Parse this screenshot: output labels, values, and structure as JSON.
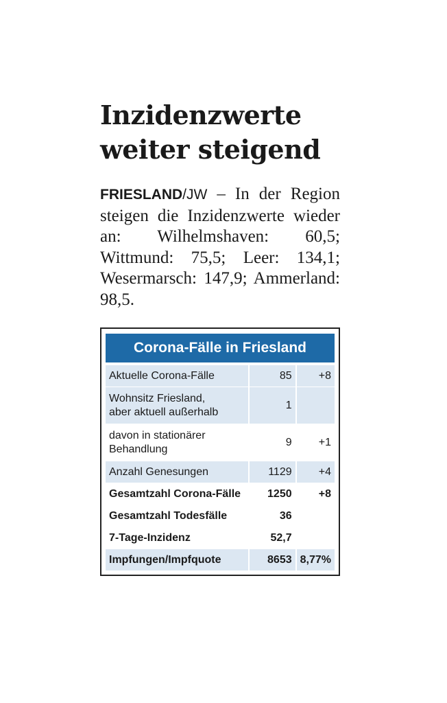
{
  "article": {
    "headline_line1": "Inzidenzwerte",
    "headline_line2": "weiter steigend",
    "dateline": "FRIESLAND",
    "agency": "/JW",
    "body": " – In der Region steigen die Inzidenzwerte wie­der an: Wilhelmshaven: 60,5; Wittmund: 75,5; Leer: 134,1; Wesermarsch: 147,9; Ammer­land: 98,5."
  },
  "box": {
    "title": "Corona-Fälle in Friesland",
    "rows": [
      {
        "label": "Aktuelle Corona-Fälle",
        "value": "85",
        "change": "+8"
      },
      {
        "label_line1": "Wohnsitz Friesland,",
        "label_line2": "aber aktuell außerhalb",
        "value": "1",
        "change": ""
      },
      {
        "label_line1": "davon in stationärer",
        "label_line2": "Behandlung",
        "value": "9",
        "change": "+1"
      },
      {
        "label": "Anzahl Genesungen",
        "value": "1129",
        "change": "+4"
      },
      {
        "label": "Gesamtzahl Corona-Fälle",
        "value": "1250",
        "change": "+8"
      },
      {
        "label": "Gesamtzahl Todesfälle",
        "value": "36",
        "change": ""
      },
      {
        "label": "7-Tage-Inzidenz",
        "value": "52,7",
        "change": ""
      },
      {
        "label": "Impfungen/Impfquote",
        "value": "8653",
        "change": "8,77%"
      }
    ]
  },
  "colors": {
    "box_header": "#1e6aa7",
    "row_shade": "#dce7f2"
  }
}
